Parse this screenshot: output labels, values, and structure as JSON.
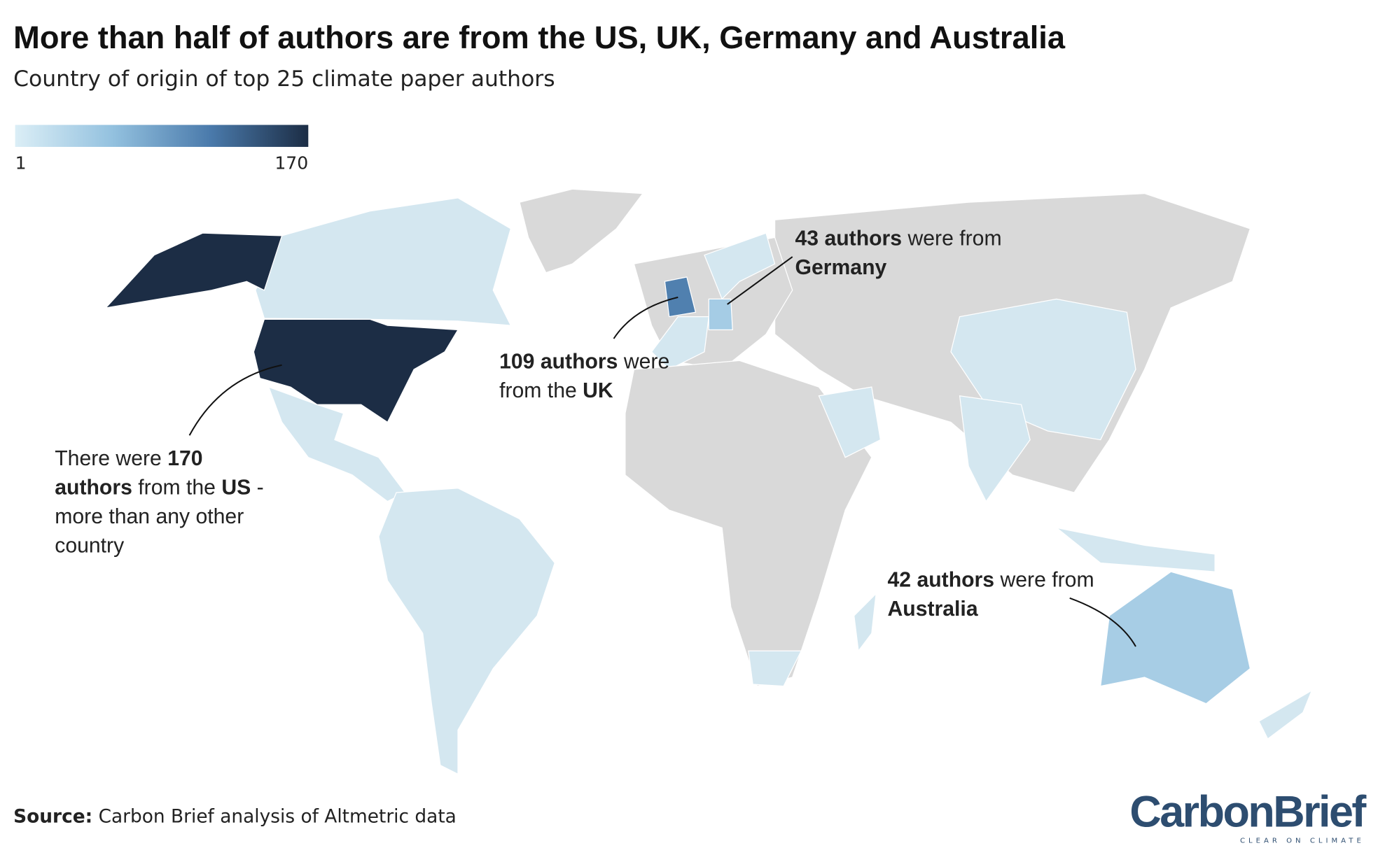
{
  "title": "More than half of authors are from the US, UK, Germany and Australia",
  "subtitle": "Country of origin of top 25 climate paper authors",
  "legend": {
    "min": 1,
    "max": 170,
    "colors": [
      "#dbeef6",
      "#93c1df",
      "#4a7aab",
      "#1c2d45"
    ]
  },
  "annotations": [
    {
      "before": "There were ",
      "value": 170,
      "after": [
        {
          "text": " authors",
          "bold": true
        },
        {
          "text": " from the ",
          "bold": false
        },
        {
          "text": "US",
          "bold": true
        },
        {
          "text": " - more than any other country",
          "bold": false
        }
      ]
    },
    {
      "before": "",
      "value": 109,
      "after": [
        {
          "text": " authors",
          "bold": true
        },
        {
          "text": " were from the ",
          "bold": false
        },
        {
          "text": "UK",
          "bold": true
        }
      ]
    },
    {
      "before": "",
      "value": 43,
      "after": [
        {
          "text": " authors",
          "bold": true
        },
        {
          "text": " were from ",
          "bold": false
        },
        {
          "text": "Germany",
          "bold": true
        }
      ]
    },
    {
      "before": "",
      "value": 42,
      "after": [
        {
          "text": " authors",
          "bold": true
        },
        {
          "text": " were from ",
          "bold": false
        },
        {
          "text": "Australia",
          "bold": true
        }
      ]
    }
  ],
  "source": {
    "label": "Source:",
    "text": " Carbon Brief analysis of Altmetric data"
  },
  "logo": {
    "name": "CarbonBrief",
    "tagline": "CLEAR ON CLIMATE"
  }
}
